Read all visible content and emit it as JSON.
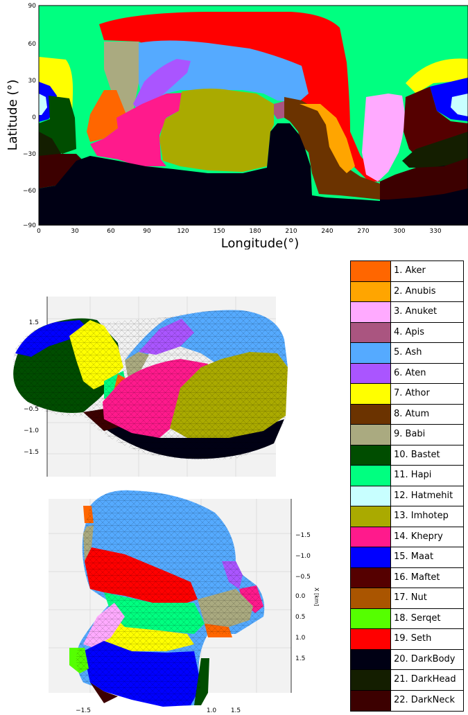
{
  "map": {
    "ylabel": "Latitude (°)",
    "xlabel": "Longitude(°)",
    "yticks": [
      "90",
      "60",
      "30",
      "0",
      "−30",
      "−60",
      "−90"
    ],
    "xticks": [
      "0",
      "30",
      "60",
      "90",
      "120",
      "150",
      "180",
      "210",
      "240",
      "270",
      "300",
      "330"
    ]
  },
  "view1": {
    "ticks": [
      "1.5",
      "−0.5",
      "−1.0",
      "−1.5"
    ]
  },
  "view2": {
    "ticks_right": [
      "−1.5",
      "−1.0",
      "−0.5",
      "0.0",
      "0.5",
      "1.0",
      "1.5"
    ],
    "axis_label_right": "X [km]",
    "ticks_bottom": [
      "−1.5",
      "1.0",
      "1.5"
    ]
  },
  "legend": [
    {
      "label": "1. Aker",
      "color": "#ff6600"
    },
    {
      "label": "2. Anubis",
      "color": "#ffa500"
    },
    {
      "label": "3. Anuket",
      "color": "#ffaaff"
    },
    {
      "label": "4. Apis",
      "color": "#aa5580"
    },
    {
      "label": "5. Ash",
      "color": "#55aaff"
    },
    {
      "label": "6. Aten",
      "color": "#aa55ff"
    },
    {
      "label": "7. Athor",
      "color": "#ffff00"
    },
    {
      "label": "8. Atum",
      "color": "#6b3300"
    },
    {
      "label": "9. Babi",
      "color": "#aaaa80"
    },
    {
      "label": "10. Bastet",
      "color": "#004d00"
    },
    {
      "label": "11. Hapi",
      "color": "#00ff80"
    },
    {
      "label": "12. Hatmehit",
      "color": "#c8ffff"
    },
    {
      "label": "13. Imhotep",
      "color": "#aaaa00"
    },
    {
      "label": "14. Khepry",
      "color": "#ff1a8c"
    },
    {
      "label": "15. Maat",
      "color": "#0000ff"
    },
    {
      "label": "16. Maftet",
      "color": "#550000"
    },
    {
      "label": "17. Nut",
      "color": "#aa5500"
    },
    {
      "label": "18. Serqet",
      "color": "#55ff00"
    },
    {
      "label": "19. Seth",
      "color": "#ff0000"
    },
    {
      "label": "20. DarkBody",
      "color": "#000014"
    },
    {
      "label": "21. DarkHead",
      "color": "#141e00"
    },
    {
      "label": "22. DarkNeck",
      "color": "#3c0000"
    }
  ]
}
